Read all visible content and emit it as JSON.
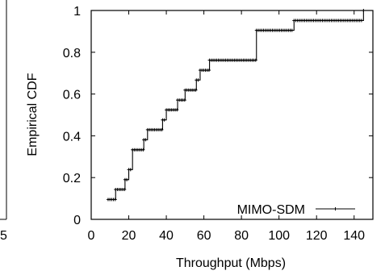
{
  "left_panel_fragment": {
    "tick_label": "5"
  },
  "chart_data": {
    "type": "line",
    "title": "",
    "xlabel": "Throughput (Mbps)",
    "ylabel": "Empirical CDF",
    "xlim": [
      0,
      150
    ],
    "ylim": [
      0,
      1
    ],
    "xticks": [
      0,
      20,
      40,
      60,
      80,
      100,
      120,
      140
    ],
    "yticks": [
      0,
      0.2,
      0.4,
      0.6,
      0.8,
      1
    ],
    "xtick_labels": [
      "0",
      "20",
      "40",
      "60",
      "80",
      "100",
      "120",
      "140"
    ],
    "ytick_labels": [
      "0",
      "0.2",
      "0.4",
      "0.6",
      "0.8",
      "1"
    ],
    "grid": false,
    "legend_position": "bottom-right",
    "series": [
      {
        "name": "MIMO-SDM",
        "color": "#000000",
        "marker": "plus",
        "step": true,
        "x": [
          9,
          13,
          18,
          20,
          22,
          28,
          30,
          38,
          40,
          46,
          50,
          56,
          58,
          63,
          88,
          108,
          145
        ],
        "y": [
          0.095,
          0.143,
          0.19,
          0.238,
          0.333,
          0.381,
          0.429,
          0.476,
          0.524,
          0.571,
          0.619,
          0.667,
          0.714,
          0.762,
          0.905,
          0.952,
          1.0
        ]
      }
    ]
  }
}
